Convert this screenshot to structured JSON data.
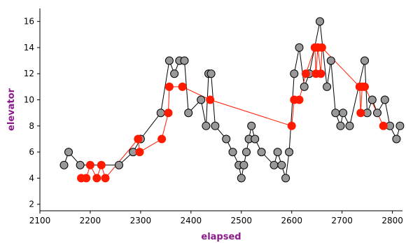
{
  "chart_data": {
    "type": "scatter",
    "xlabel": "elapsed",
    "ylabel": "elevator",
    "xlim": [
      2100,
      2820
    ],
    "ylim": [
      1.5,
      17
    ],
    "xticks": [
      2100,
      2200,
      2300,
      2400,
      2500,
      2600,
      2700,
      2800
    ],
    "yticks": [
      2,
      4,
      6,
      8,
      10,
      12,
      14,
      16
    ],
    "grid": false,
    "legend": "none",
    "colors": {
      "axis_title": "#8b1a8b",
      "gray_marker": "#999999",
      "red_marker": "#ff1a00",
      "gray_line": "#000000",
      "red_line": "#ff1a00"
    },
    "series": [
      {
        "color": "gray",
        "points": [
          [
            2148,
            5
          ],
          [
            2157,
            6
          ],
          [
            2180,
            5
          ],
          [
            2257,
            5
          ],
          [
            2285,
            6
          ],
          [
            2300,
            7
          ],
          [
            2340,
            9
          ],
          [
            2357,
            13
          ],
          [
            2367,
            12
          ],
          [
            2377,
            13
          ],
          [
            2387,
            13
          ],
          [
            2395,
            9
          ],
          [
            2420,
            10
          ],
          [
            2430,
            8
          ],
          [
            2435,
            12
          ],
          [
            2440,
            12
          ],
          [
            2448,
            8
          ],
          [
            2470,
            7
          ],
          [
            2483,
            6
          ],
          [
            2495,
            5
          ],
          [
            2500,
            4
          ],
          [
            2505,
            5
          ],
          [
            2510,
            6
          ],
          [
            2515,
            7
          ],
          [
            2520,
            8
          ],
          [
            2527,
            7
          ],
          [
            2540,
            6
          ],
          [
            2565,
            5
          ],
          [
            2572,
            6
          ],
          [
            2580,
            5
          ],
          [
            2588,
            4
          ],
          [
            2595,
            6
          ],
          [
            2605,
            12
          ],
          [
            2615,
            14
          ],
          [
            2625,
            11
          ],
          [
            2635,
            12
          ],
          [
            2656,
            16
          ],
          [
            2670,
            11
          ],
          [
            2678,
            13
          ],
          [
            2687,
            9
          ],
          [
            2697,
            8
          ],
          [
            2702,
            9
          ],
          [
            2715,
            8
          ],
          [
            2745,
            13
          ],
          [
            2750,
            9
          ],
          [
            2760,
            10
          ],
          [
            2770,
            9
          ],
          [
            2785,
            10
          ],
          [
            2795,
            8
          ],
          [
            2808,
            7
          ],
          [
            2815,
            8
          ]
        ]
      },
      {
        "color": "red",
        "points": [
          [
            2182,
            4
          ],
          [
            2192,
            4
          ],
          [
            2200,
            5
          ],
          [
            2213,
            4
          ],
          [
            2222,
            5
          ],
          [
            2230,
            4
          ],
          [
            2295,
            7
          ],
          [
            2298,
            6
          ],
          [
            2342,
            7
          ],
          [
            2355,
            9
          ],
          [
            2357,
            11
          ],
          [
            2383,
            11
          ],
          [
            2438,
            10
          ],
          [
            2600,
            8
          ],
          [
            2605,
            10
          ],
          [
            2615,
            10
          ],
          [
            2628,
            12
          ],
          [
            2646,
            14
          ],
          [
            2648,
            12
          ],
          [
            2652,
            14
          ],
          [
            2658,
            12
          ],
          [
            2660,
            14
          ],
          [
            2735,
            11
          ],
          [
            2737,
            9
          ],
          [
            2740,
            11
          ],
          [
            2745,
            11
          ],
          [
            2782,
            8
          ]
        ]
      }
    ]
  }
}
